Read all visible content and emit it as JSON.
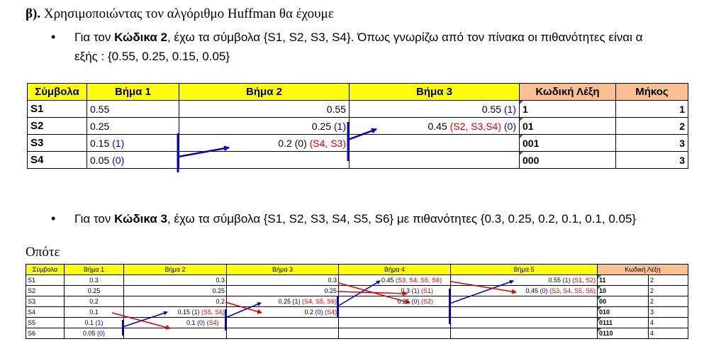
{
  "heading": {
    "prefix": "β).",
    "text": " Χρησιμοποιώντας τον αλγόριθμο Huffman θα έχουμε"
  },
  "bullet1": {
    "pre": "Για τον ",
    "bold": "Κώδικα 2",
    "post": ", έχω τα σύμβολα {S1, S2, S3, S4}. Όπως γνωρίζω από τον πίνακα οι πιθανότητες είναι α",
    "line2": "εξής : {0.55, 0.25, 0.15, 0.05}"
  },
  "table1": {
    "headers": [
      "Σύμβολα",
      "Βήμα 1",
      "Βήμα 2",
      "Βήμα 3",
      "Κωδική Λέξη",
      "Μήκος"
    ],
    "rows": [
      {
        "sym": "S1",
        "s1": "0.55",
        "s1x": "",
        "s2": "0.55",
        "s2x": "",
        "s2r": "",
        "s3": "0.55 ",
        "s3x": "(1)",
        "s3r": "",
        "code": "1",
        "len": "1"
      },
      {
        "sym": "S2",
        "s1": "0.25",
        "s1x": "",
        "s2": "0.25 ",
        "s2x": "(1)",
        "s2r": "",
        "s3": "0.45  ",
        "s3x": "(0)",
        "s3r": "(S2, S3,S4) ",
        "code": "01",
        "len": "2"
      },
      {
        "sym": "S3",
        "s1": "0.15 ",
        "s1x": "(1)",
        "s2": "0.2 (0) ",
        "s2x": "",
        "s2r": "(S4, S3)",
        "s3": "",
        "s3x": "",
        "s3r": "",
        "code": "001",
        "len": "3"
      },
      {
        "sym": "S4",
        "s1": "0.05 ",
        "s1x": "(0)",
        "s2": "",
        "s2x": "",
        "s2r": "",
        "s3": "",
        "s3x": "",
        "s3r": "",
        "code": "000",
        "len": "3"
      }
    ]
  },
  "bullet2": {
    "pre": "Για τον ",
    "bold": "Κώδικα 3",
    "post": ", έχω τα σύμβολα {S1, S2, S3, S4, S5, S6} με πιθανότητες {0.3, 0.25, 0.2, 0.1, 0.1, 0.05}"
  },
  "opote": "Οπότε",
  "table2": {
    "headers": [
      "Σύμβολα",
      "Βήμα 1",
      "Βήμα 2",
      "Βήμα 3",
      "Βήμα 4",
      "Βήμα 5",
      "Κωδική Λέξη"
    ],
    "rows": [
      {
        "sym": "S1",
        "b1": "0.3",
        "b2": "0.3",
        "b3": "0.3",
        "b4a": "0.45 ",
        "b4r": "(S3, S4, S5, S6)",
        "b5a": "0.55 ",
        "b5b": "(1)",
        "b5r": " (S1, S2)",
        "code": "11",
        "len": "2"
      },
      {
        "sym": "S2",
        "b1": "0.25",
        "b2": "0.25",
        "b3": "0.25",
        "b4a": "0.3 ",
        "b4b": "(1)",
        "b4r": " (S1)",
        "b5a": "0.45 ",
        "b5b": "(0)",
        "b5r": " (S3, S4, S5, S6)",
        "code": "10",
        "len": "2"
      },
      {
        "sym": "S3",
        "b1": "0.2",
        "b2": "0.2",
        "b3a": "0.25 ",
        "b3b": "(1)",
        "b3r": " (S4, S5, S6)",
        "b4a": "0.25 ",
        "b4b": "(0)",
        "b4r": " (S2)",
        "code": "00",
        "len": "2"
      },
      {
        "sym": "S4",
        "b1": "0.1",
        "b2a": "0.15 ",
        "b2b": "(1)",
        "b2r": " (S5, S6)",
        "b3a": "0.2 ",
        "b3b": "(0)",
        "b3r": " (S4)",
        "code": "010",
        "len": "3"
      },
      {
        "sym": "S5",
        "b1a": "0.1 ",
        "b1b": "(1)",
        "b2a": "0.1 ",
        "b2b": "(0)",
        "b2r": " (S4)",
        "code": "0111",
        "len": "4"
      },
      {
        "sym": "S6",
        "b1a": "0.05 ",
        "b1b": "(0)",
        "code": "0110",
        "len": "4"
      }
    ]
  }
}
